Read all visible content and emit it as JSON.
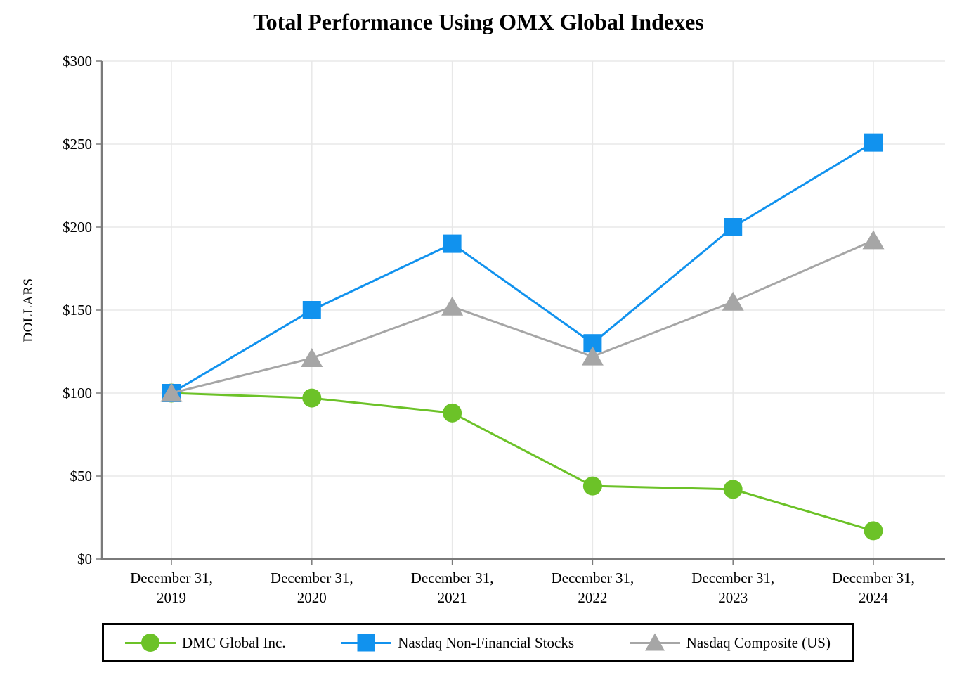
{
  "chart_data": {
    "type": "line",
    "title": "Total Performance Using OMX Global Indexes",
    "ylabel": "DOLLARS",
    "xlabel": "",
    "ylim": [
      0,
      300
    ],
    "grid": true,
    "legend_position": "bottom",
    "y_ticks": [
      {
        "label": "$0",
        "value": 0
      },
      {
        "label": "$50",
        "value": 50
      },
      {
        "label": "$100",
        "value": 100
      },
      {
        "label": "$150",
        "value": 150
      },
      {
        "label": "$200",
        "value": 200
      },
      {
        "label": "$250",
        "value": 250
      },
      {
        "label": "$300",
        "value": 300
      }
    ],
    "categories": [
      {
        "line1": "December 31,",
        "line2": "2019"
      },
      {
        "line1": "December 31,",
        "line2": "2020"
      },
      {
        "line1": "December 31,",
        "line2": "2021"
      },
      {
        "line1": "December 31,",
        "line2": "2022"
      },
      {
        "line1": "December 31,",
        "line2": "2023"
      },
      {
        "line1": "December 31,",
        "line2": "2024"
      }
    ],
    "series": [
      {
        "name": "DMC Global Inc.",
        "marker": "circle",
        "color": "#6CC228",
        "values": [
          100,
          97,
          88,
          44,
          42,
          17
        ]
      },
      {
        "name": "Nasdaq Non-Financial Stocks",
        "marker": "square",
        "color": "#1192EE",
        "values": [
          100,
          150,
          190,
          130,
          200,
          251
        ]
      },
      {
        "name": "Nasdaq Composite (US)",
        "marker": "triangle",
        "color": "#A6A6A6",
        "values": [
          100,
          121,
          152,
          122,
          155,
          192
        ]
      }
    ],
    "colors": {
      "axis": "#7A7A7A",
      "gridline": "#E8E8E8",
      "text": "#000000",
      "legend_border": "#000000",
      "background": "#FFFFFF"
    }
  }
}
